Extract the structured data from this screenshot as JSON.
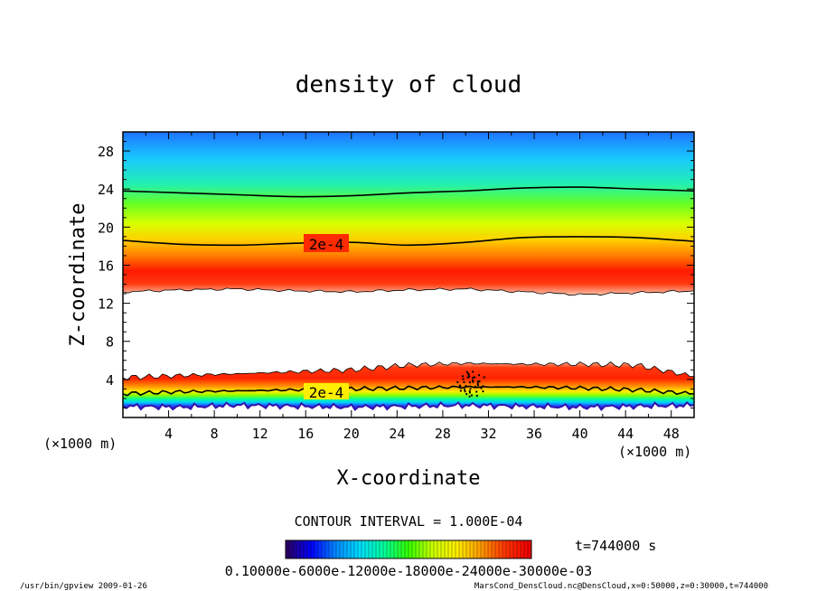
{
  "chart_data": {
    "type": "heatmap",
    "title": "density of cloud",
    "xlabel": "X-coordinate",
    "ylabel": "Z-coordinate",
    "x_unit_left": "(×1000 m)",
    "x_unit_right": "(×1000 m)",
    "xlim": [
      0,
      50
    ],
    "ylim": [
      0,
      30
    ],
    "x_ticks": [
      "4",
      "8",
      "12",
      "16",
      "20",
      "24",
      "28",
      "32",
      "36",
      "40",
      "44",
      "48"
    ],
    "y_ticks": [
      "4",
      "8",
      "12",
      "16",
      "20",
      "24",
      "28"
    ],
    "upper_layer": {
      "bottom_z": [
        13.2,
        13.4,
        13.5,
        13.3,
        13.2,
        13.4,
        13.5,
        13.2,
        12.9,
        13.1,
        13.3
      ],
      "contour_2e4_z": [
        18.6,
        18.2,
        18.1,
        18.3,
        18.4,
        18.1,
        18.4,
        18.9,
        19.0,
        18.9,
        18.5
      ],
      "contour_upper_z": [
        23.8,
        23.6,
        23.4,
        23.2,
        23.3,
        23.6,
        23.8,
        24.1,
        24.2,
        24.0,
        23.8
      ],
      "peak_z": [
        15.5,
        15.5,
        15.6,
        15.4,
        15.2,
        15.0,
        15.2,
        15.5,
        15.6,
        15.6,
        15.5
      ]
    },
    "lower_layer": {
      "top_z": [
        4.2,
        4.4,
        4.6,
        4.8,
        5.0,
        5.5,
        5.7,
        5.6,
        5.6,
        5.5,
        4.3
      ],
      "contour_2e4_z": [
        2.5,
        2.7,
        2.8,
        2.9,
        3.0,
        3.1,
        3.2,
        3.2,
        3.1,
        2.9,
        2.5
      ],
      "bottom_z": [
        1.2,
        1.1,
        1.3,
        1.2,
        1.1,
        1.2,
        1.3,
        1.2,
        1.1,
        1.2,
        1.3
      ]
    },
    "contour_labels": [
      "2e-4",
      "2e-4"
    ],
    "contour_interval_text": "CONTOUR INTERVAL = 1.000E-04",
    "time_text": "t=744000 s",
    "colorbar_labels_text": "0.10000e-6000e-12000e-18000e-24000e-30000e-03",
    "colormap": [
      "#2a0066",
      "#0000ff",
      "#0088ff",
      "#00ddff",
      "#00ff99",
      "#33ff00",
      "#ccff00",
      "#ffee00",
      "#ff9900",
      "#ff3300",
      "#ee0000"
    ]
  },
  "footer": {
    "left": "/usr/bin/gpview   2009-01-26",
    "right": "MarsCond_DensCloud.nc@DensCloud,x=0:50000,z=0:30000,t=744000"
  }
}
